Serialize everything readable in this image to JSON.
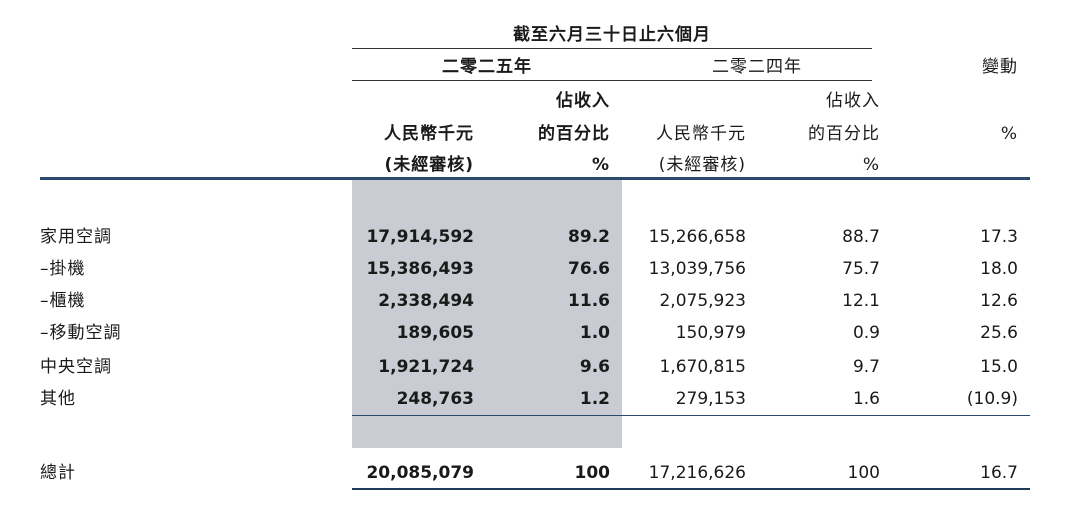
{
  "header": {
    "period": "截至六月三十日止六個月",
    "year_2025": "二零二五年",
    "year_2024": "二零二四年",
    "change": "變動",
    "rmb": "人民幣千元",
    "unaudited": "(未經審核)",
    "pct_line1": "佔收入",
    "pct_line2": "的百分比",
    "pct_sym": "%"
  },
  "rows": [
    {
      "label": "家用空調",
      "v25": "17,914,592",
      "p25": "89.2",
      "v24": "15,266,658",
      "p24": "88.7",
      "chg": "17.3"
    },
    {
      "label": "–掛機",
      "v25": "15,386,493",
      "p25": "76.6",
      "v24": "13,039,756",
      "p24": "75.7",
      "chg": "18.0"
    },
    {
      "label": "–櫃機",
      "v25": "2,338,494",
      "p25": "11.6",
      "v24": "2,075,923",
      "p24": "12.1",
      "chg": "12.6"
    },
    {
      "label": "–移動空調",
      "v25": "189,605",
      "p25": "1.0",
      "v24": "150,979",
      "p24": "0.9",
      "chg": "25.6"
    },
    {
      "label": "中央空調",
      "v25": "1,921,724",
      "p25": "9.6",
      "v24": "1,670,815",
      "p24": "9.7",
      "chg": "15.0"
    },
    {
      "label": "其他",
      "v25": "248,763",
      "p25": "1.2",
      "v24": "279,153",
      "p24": "1.6",
      "chg": "(10.9)"
    }
  ],
  "total": {
    "label": "總計",
    "v25": "20,085,079",
    "p25": "100",
    "v24": "17,216,626",
    "p24": "100",
    "chg": "16.7"
  }
}
